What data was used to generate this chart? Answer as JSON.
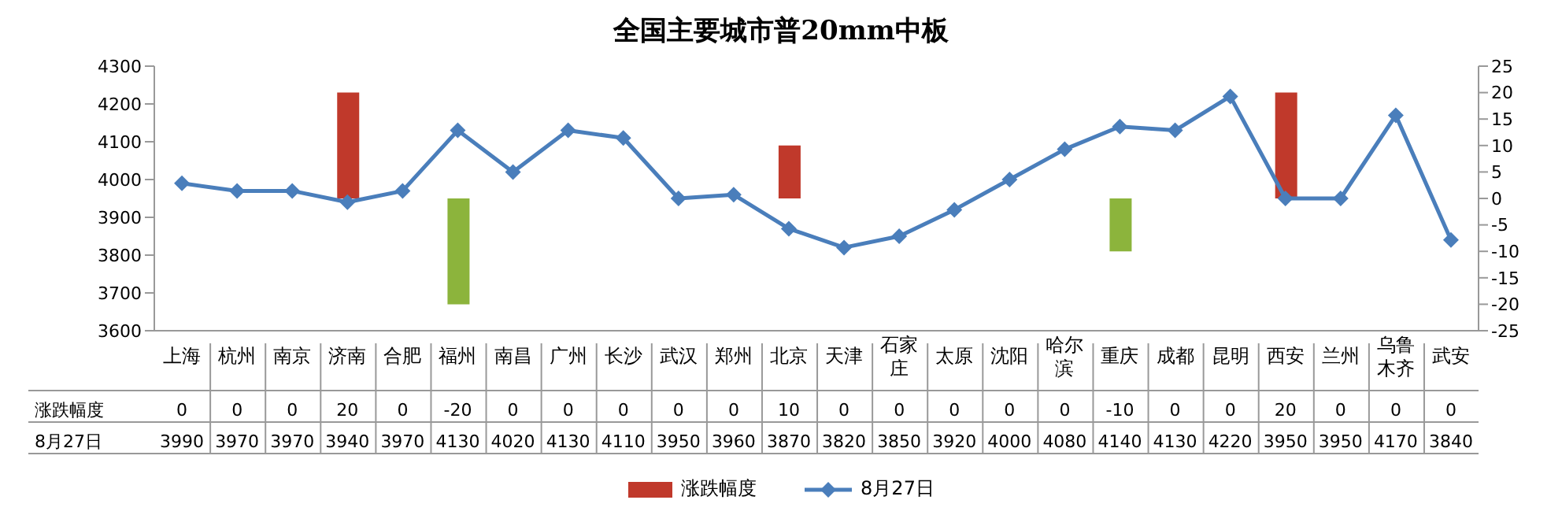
{
  "chart_data": {
    "type": "bar",
    "title": "全国主要城市普20mm中板",
    "categories": [
      "上海",
      "杭州",
      "南京",
      "济南",
      "合肥",
      "福州",
      "南昌",
      "广州",
      "长沙",
      "武汉",
      "郑州",
      "北京",
      "天津",
      "石家庄",
      "太原",
      "沈阳",
      "哈尔滨",
      "重庆",
      "成都",
      "昆明",
      "西安",
      "兰州",
      "乌鲁木齐",
      "武安"
    ],
    "series": [
      {
        "name": "涨跌幅度",
        "axis": "y2",
        "colors": [
          "#c0392b",
          "#c0392b",
          "#c0392b",
          "#c0392b",
          "#c0392b",
          "#8cb43c",
          "#c0392b",
          "#c0392b",
          "#c0392b",
          "#c0392b",
          "#c0392b",
          "#c0392b",
          "#c0392b",
          "#c0392b",
          "#c0392b",
          "#c0392b",
          "#c0392b",
          "#8cb43c",
          "#c0392b",
          "#c0392b",
          "#c0392b",
          "#c0392b",
          "#c0392b",
          "#c0392b"
        ],
        "values": [
          0,
          0,
          0,
          20,
          0,
          -20,
          0,
          0,
          0,
          0,
          0,
          10,
          0,
          0,
          0,
          0,
          0,
          -10,
          0,
          0,
          20,
          0,
          0,
          0
        ]
      },
      {
        "name": "8月27日",
        "type": "line",
        "color": "#4a7ebb",
        "values": [
          3990,
          3970,
          3970,
          3940,
          3970,
          4130,
          4020,
          4130,
          4110,
          3950,
          3960,
          3870,
          3820,
          3850,
          3920,
          4000,
          4080,
          4140,
          4130,
          4220,
          3950,
          3950,
          4170,
          3840
        ]
      }
    ],
    "ylim": [
      3600,
      4300
    ],
    "yticks": [
      3600,
      3700,
      3800,
      3900,
      4000,
      4100,
      4200,
      4300
    ],
    "y2lim": [
      -25,
      25
    ],
    "y2ticks": [
      -25,
      -20,
      -15,
      -10,
      -5,
      0,
      5,
      10,
      15,
      20,
      25
    ],
    "marker": "diamond",
    "data_labels": true,
    "legend": "bottom",
    "grid": false
  }
}
